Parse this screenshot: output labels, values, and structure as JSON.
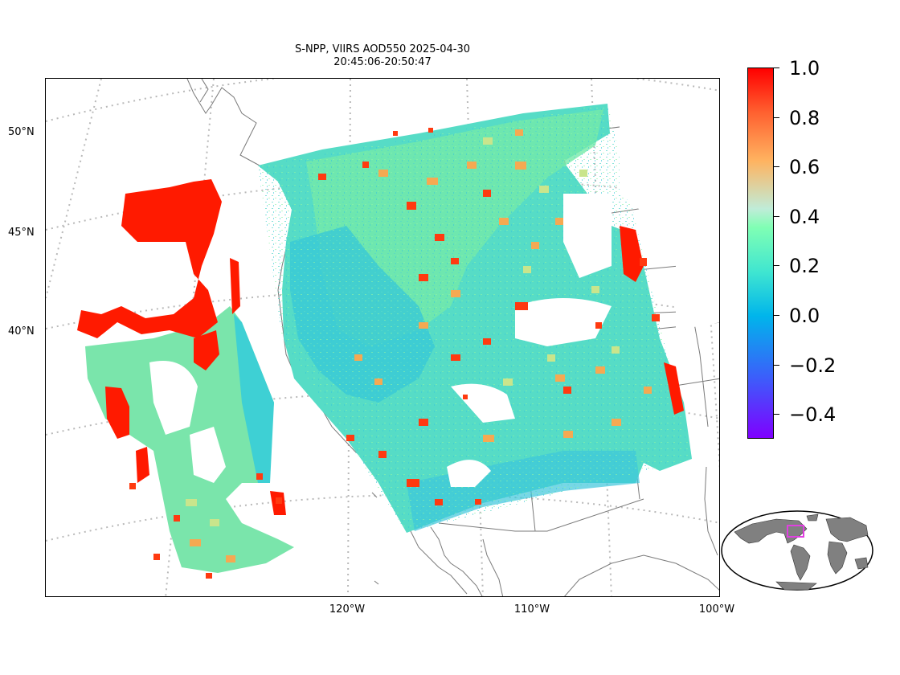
{
  "title": {
    "line1": "S-NPP, VIIRS AOD550 2025-04-30",
    "line2": "20:45:06-20:50:47"
  },
  "map": {
    "lat_labels": [
      "50°N",
      "45°N",
      "40°N"
    ],
    "lon_labels": [
      "120°W",
      "110°W",
      "100°W"
    ],
    "colors": {
      "coastline": "#7a7a7a",
      "state_border": "#7a7a7a",
      "gridline": "#b9b9b9",
      "land_inset": "#808080",
      "inset_box": "#e040e0"
    }
  },
  "colorbar": {
    "colormap": "rainbow",
    "range": [
      -0.5,
      1.0
    ],
    "tick_labels": [
      "1.0",
      "0.8",
      "0.6",
      "0.4",
      "0.2",
      "0.0",
      "−0.2",
      "−0.4"
    ],
    "tick_values": [
      1.0,
      0.8,
      0.6,
      0.4,
      0.2,
      0.0,
      -0.2,
      -0.4
    ]
  },
  "inset": {
    "icon": "globe-locator-icon",
    "projection": "robinson"
  }
}
